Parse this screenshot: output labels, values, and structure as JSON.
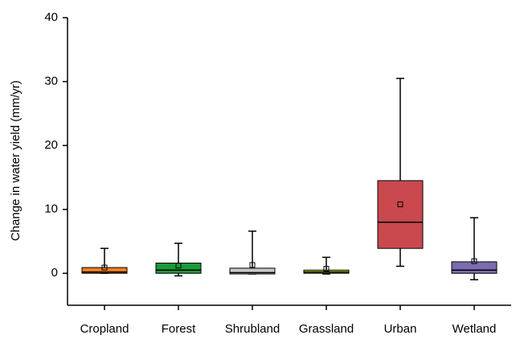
{
  "chart_data": {
    "type": "box",
    "y_label": "Change in water yield (mm/yr)",
    "categories": [
      "Cropland",
      "Forest",
      "Shrubland",
      "Grassland",
      "Urban",
      "Wetland"
    ],
    "colors": [
      "#f07f22",
      "#1a9a3a",
      "#c8c8c8",
      "#b5cc2e",
      "#c9494f",
      "#7b6cb0"
    ],
    "min": [
      0,
      -0.4,
      -0.1,
      -0.1,
      1.1,
      -1.0
    ],
    "q1": [
      0,
      0,
      -0.1,
      0,
      3.9,
      0
    ],
    "median": [
      0.2,
      0.5,
      0.1,
      0.2,
      8.0,
      0.5
    ],
    "q3": [
      0.9,
      1.6,
      0.8,
      0.5,
      14.5,
      1.8
    ],
    "max": [
      3.9,
      4.7,
      6.6,
      2.5,
      30.5,
      8.7
    ],
    "mean": [
      0.9,
      1.2,
      1.3,
      0.7,
      10.8,
      1.9
    ],
    "ylim": [
      -5,
      40
    ],
    "yticks": [
      0,
      10,
      20,
      30,
      40
    ]
  }
}
